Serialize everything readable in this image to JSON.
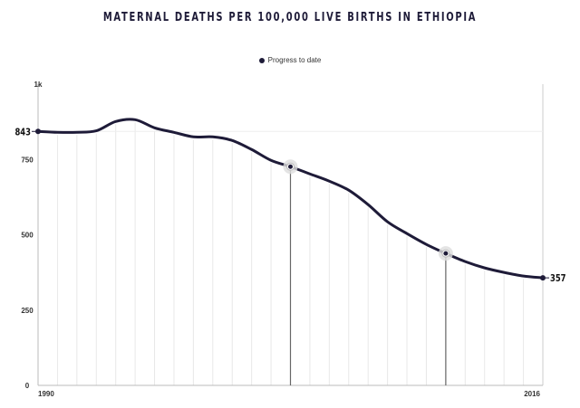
{
  "chart_data": {
    "type": "line",
    "title": "MATERNAL DEATHS PER 100,000 LIVE BIRTHS IN ETHIOPIA",
    "legend": [
      {
        "label": "Progress to date",
        "color": "#1e1b38"
      }
    ],
    "legend_position": "top-center",
    "xlim": [
      1990,
      2016
    ],
    "ylim": [
      0,
      1000
    ],
    "x_tick_labels": [
      "1990",
      "2016"
    ],
    "y_ticks": [
      0,
      250,
      500,
      750,
      1000
    ],
    "y_tick_labels": [
      "0",
      "250",
      "500",
      "750",
      "1k"
    ],
    "grid": "vertical lines per year",
    "series": [
      {
        "color": "#1e1b38",
        "x": [
          1990,
          1991,
          1992,
          1993,
          1994,
          1995,
          1996,
          1997,
          1998,
          1999,
          2000,
          2001,
          2002,
          2003,
          2004,
          2005,
          2006,
          2007,
          2008,
          2009,
          2010,
          2011,
          2012,
          2013,
          2014,
          2015,
          2016
        ],
        "y": [
          843,
          840,
          840,
          845,
          876,
          882,
          855,
          840,
          825,
          825,
          813,
          783,
          747,
          726,
          702,
          678,
          648,
          600,
          543,
          504,
          468,
          438,
          411,
          390,
          375,
          363,
          357
        ]
      }
    ],
    "start_label": "843",
    "end_label": "357",
    "highlighted_years": [
      2003,
      2011
    ]
  }
}
